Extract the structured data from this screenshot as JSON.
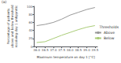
{
  "chart_data": {
    "type": "line",
    "panel_label": "(a)",
    "xlabel": "Maximum temperature on day 1 [°C]",
    "ylabel": "Percentage of patients\nabove and below threshold\nreceiving day 1 antipyretic",
    "legend_title": "Thresholds",
    "x": [
      36.0,
      36.5,
      37.0,
      37.5,
      38.0,
      38.5,
      39.0,
      39.5
    ],
    "series": [
      {
        "name": "Above",
        "color": "#999999",
        "values": [
          52,
          55,
          60,
          68,
          78,
          85,
          92,
          97
        ]
      },
      {
        "name": "Below",
        "color": "#aacc77",
        "values": [
          10,
          12,
          20,
          28,
          35,
          42,
          48,
          52
        ]
      }
    ],
    "xlim": [
      35.85,
      39.65
    ],
    "ylim": [
      0,
      100
    ],
    "xticks": [
      {
        "value": 36.0,
        "label": "36.0"
      },
      36.5,
      {
        "value": 37.0,
        "label": "37.0"
      },
      37.5,
      {
        "value": 38.0,
        "label": "38.0"
      },
      38.5,
      {
        "value": 39.0,
        "label": "39.0"
      },
      39.5
    ],
    "yticks": [
      0,
      20,
      40,
      60,
      80,
      100
    ],
    "grid": false,
    "legend": "right"
  }
}
